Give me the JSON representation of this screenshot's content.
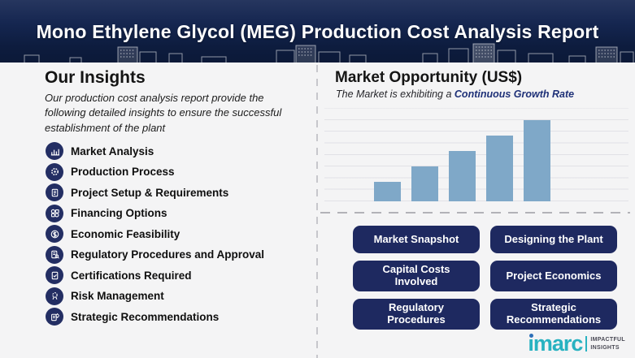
{
  "header": {
    "title": "Mono Ethylene Glycol (MEG) Production Cost Analysis Report"
  },
  "insights": {
    "heading": "Our Insights",
    "description": "Our production cost analysis report provide the following detailed insights to ensure the successful establishment of the plant",
    "items": [
      {
        "icon": "market-analysis-icon",
        "label": "Market Analysis"
      },
      {
        "icon": "production-process-icon",
        "label": "Production Process"
      },
      {
        "icon": "project-setup-icon",
        "label": "Project Setup & Requirements"
      },
      {
        "icon": "financing-options-icon",
        "label": "Financing Options"
      },
      {
        "icon": "economic-feasibility-icon",
        "label": "Economic Feasibility"
      },
      {
        "icon": "regulatory-procedures-icon",
        "label": "Regulatory Procedures and Approval"
      },
      {
        "icon": "certifications-icon",
        "label": "Certifications Required"
      },
      {
        "icon": "risk-management-icon",
        "label": "Risk Management"
      },
      {
        "icon": "strategic-recommendations-icon",
        "label": "Strategic Recommendations"
      }
    ]
  },
  "market": {
    "heading": "Market Opportunity (US$)",
    "subtitle_prefix": "The Market is exhibiting a ",
    "subtitle_highlight": "Continuous Growth Rate",
    "buttons": [
      "Market Snapshot",
      "Designing the Plant",
      "Capital Costs Involved",
      "Project Economics",
      "Regulatory Procedures",
      "Strategic Recommendations"
    ]
  },
  "chart_data": {
    "type": "bar",
    "title": "Market Opportunity (US$)",
    "values": [
      24,
      43,
      62,
      81,
      100
    ],
    "categories": [
      "",
      "",
      "",
      "",
      ""
    ],
    "xlabel": "",
    "ylabel": "",
    "ylim": [
      0,
      115
    ],
    "grid": true,
    "legend": false,
    "bar_color": "#7fa8c8",
    "note": "five unlabeled bars showing steady linear growth"
  },
  "logo": {
    "brand": "imarc",
    "tagline_line1": "IMPACTFUL",
    "tagline_line2": "INSIGHTS"
  },
  "colors": {
    "header_navy": "#0f1f44",
    "accent_navy": "#1e2960",
    "icon_navy": "#232e63",
    "bar_blue": "#7fa8c8",
    "highlight_navy": "#1f3178",
    "brand_teal": "#29b2c1"
  }
}
